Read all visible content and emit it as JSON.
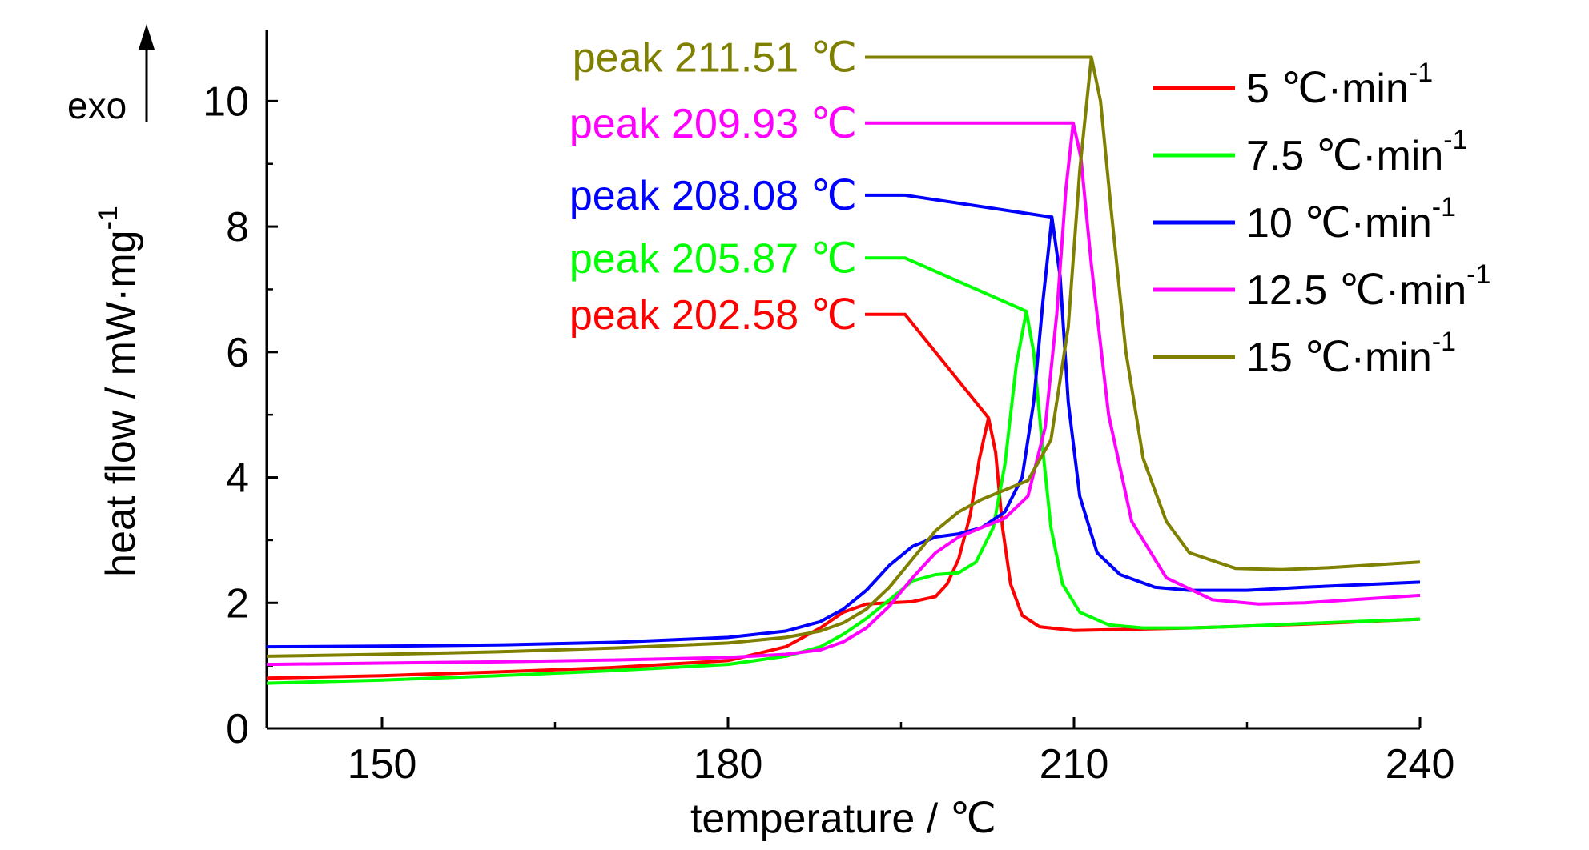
{
  "chart_data": {
    "type": "line",
    "xlabel": "temperature / ℃",
    "ylabel": "heat flow / mW·mg",
    "ylabel_sup": "-1",
    "exo_label": "exo",
    "xlim": [
      140,
      240
    ],
    "ylim": [
      0,
      11
    ],
    "x_major_ticks": [
      150,
      180,
      210,
      240
    ],
    "x_tick_labels": [
      "150",
      "180",
      "210",
      "240"
    ],
    "y_major_ticks": [
      0,
      2,
      4,
      6,
      8,
      10
    ],
    "y_tick_labels": [
      "0",
      "2",
      "4",
      "6",
      "8",
      "10"
    ],
    "legend_position": "top-right",
    "series": [
      {
        "name": "5 ℃·min",
        "name_sup": "-1",
        "color": "#ff0000",
        "peak_label": "peak 202.58 ℃",
        "peak": [
          202.58,
          4.95
        ],
        "label_y": 6.6,
        "x": [
          140,
          150,
          160,
          170,
          180,
          185,
          188,
          190,
          192,
          194,
          196,
          198,
          199,
          200,
          201,
          201.8,
          202.58,
          203.2,
          203.8,
          204.5,
          205.5,
          207,
          210,
          215,
          220,
          225,
          230,
          235,
          240
        ],
        "y": [
          0.8,
          0.84,
          0.9,
          0.97,
          1.08,
          1.3,
          1.6,
          1.85,
          1.98,
          2.0,
          2.02,
          2.1,
          2.3,
          2.7,
          3.4,
          4.3,
          4.95,
          4.4,
          3.2,
          2.3,
          1.8,
          1.62,
          1.56,
          1.58,
          1.6,
          1.63,
          1.66,
          1.7,
          1.74
        ]
      },
      {
        "name": "7.5 ℃·min",
        "name_sup": "-1",
        "color": "#00ff00",
        "peak_label": "peak 205.87 ℃",
        "peak": [
          205.87,
          6.65
        ],
        "label_y": 7.5,
        "x": [
          140,
          150,
          160,
          170,
          180,
          185,
          188,
          190,
          192,
          194,
          196,
          198,
          200,
          201.5,
          203,
          204,
          205,
          205.87,
          206.5,
          207.2,
          208,
          209,
          210.5,
          213,
          216,
          220,
          225,
          230,
          240
        ],
        "y": [
          0.72,
          0.77,
          0.84,
          0.92,
          1.02,
          1.15,
          1.3,
          1.5,
          1.75,
          2.05,
          2.35,
          2.45,
          2.48,
          2.65,
          3.2,
          4.2,
          5.8,
          6.65,
          6.0,
          4.6,
          3.2,
          2.3,
          1.85,
          1.65,
          1.6,
          1.6,
          1.63,
          1.67,
          1.74
        ]
      },
      {
        "name": "10 ℃·min",
        "name_sup": "-1",
        "color": "#0000ff",
        "peak_label": "peak 208.08 ℃",
        "peak": [
          208.08,
          8.15
        ],
        "label_y": 8.5,
        "x": [
          140,
          150,
          160,
          170,
          180,
          185,
          188,
          190,
          192,
          194,
          196,
          198,
          200,
          202,
          204,
          205.5,
          206.5,
          207.3,
          208.08,
          208.8,
          209.5,
          210.5,
          212,
          214,
          217,
          220,
          225,
          230,
          240
        ],
        "y": [
          1.3,
          1.31,
          1.33,
          1.37,
          1.45,
          1.55,
          1.7,
          1.9,
          2.2,
          2.6,
          2.9,
          3.05,
          3.1,
          3.2,
          3.45,
          4.0,
          5.2,
          6.8,
          8.15,
          7.2,
          5.2,
          3.7,
          2.8,
          2.45,
          2.25,
          2.2,
          2.2,
          2.25,
          2.33
        ]
      },
      {
        "name": "12.5 ℃·min",
        "name_sup": "-1",
        "color": "#ff00ff",
        "peak_label": "peak 209.93 ℃",
        "peak": [
          209.93,
          9.65
        ],
        "label_y": 9.65,
        "x": [
          140,
          150,
          160,
          170,
          180,
          185,
          188,
          190,
          192,
          194,
          196,
          198,
          200,
          202,
          204,
          206,
          207.5,
          208.5,
          209.3,
          209.93,
          210.6,
          211.5,
          213,
          215,
          218,
          222,
          226,
          230,
          240
        ],
        "y": [
          1.02,
          1.04,
          1.06,
          1.09,
          1.13,
          1.18,
          1.25,
          1.38,
          1.6,
          1.95,
          2.4,
          2.8,
          3.05,
          3.2,
          3.35,
          3.7,
          4.8,
          6.6,
          8.6,
          9.65,
          9.1,
          7.4,
          5.0,
          3.3,
          2.4,
          2.05,
          1.98,
          2.0,
          2.12
        ]
      },
      {
        "name": "15 ℃·min",
        "name_sup": "-1",
        "color": "#808000",
        "peak_label": "peak 211.51 ℃",
        "peak": [
          211.51,
          10.7
        ],
        "label_y": 10.7,
        "x": [
          140,
          150,
          160,
          170,
          180,
          185,
          188,
          190,
          192,
          194,
          196,
          198,
          200,
          202,
          204,
          206,
          208,
          209.5,
          210.5,
          211.51,
          212.3,
          213.2,
          214.5,
          216,
          218,
          220,
          224,
          228,
          232,
          240
        ],
        "y": [
          1.15,
          1.18,
          1.22,
          1.28,
          1.36,
          1.45,
          1.55,
          1.68,
          1.9,
          2.25,
          2.7,
          3.15,
          3.45,
          3.65,
          3.8,
          3.95,
          4.6,
          6.4,
          8.9,
          10.7,
          10.0,
          8.3,
          6.0,
          4.3,
          3.3,
          2.8,
          2.55,
          2.53,
          2.56,
          2.65
        ]
      }
    ]
  }
}
